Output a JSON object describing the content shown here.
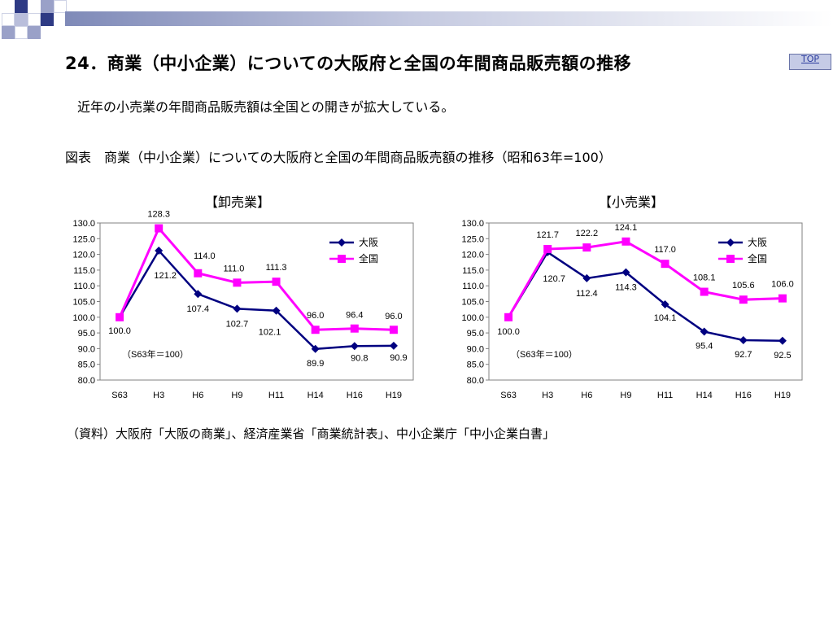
{
  "slide": {
    "title": "24．商業（中小企業）についての大阪府と全国の年間商品販売額の推移",
    "top_link": "TOP",
    "subtitle": "近年の小売業の年間商品販売額は全国との開きが拡大している。",
    "figure_title": "図表　商業（中小企業）についての大阪府と全国の年間商品販売額の推移（昭和63年=100）",
    "source": "（資料）大阪府「大阪の商業」、経済産業省「商業統計表」、中小企業庁「中小企業白書」"
  },
  "chart_data": [
    {
      "type": "line",
      "title": "【卸売業】",
      "categories": [
        "S63",
        "H3",
        "H6",
        "H9",
        "H11",
        "H14",
        "H16",
        "H19"
      ],
      "ylim": [
        80,
        130
      ],
      "yticks": [
        "80.0",
        "85.0",
        "90.0",
        "95.0",
        "100.0",
        "105.0",
        "110.0",
        "115.0",
        "120.0",
        "125.0",
        "130.0"
      ],
      "note": "（S63年＝100）",
      "legend_position": "top-right",
      "series": [
        {
          "name": "大阪",
          "color": "#000080",
          "marker": "diamond",
          "values": [
            100.0,
            121.2,
            107.4,
            102.7,
            102.1,
            89.9,
            90.8,
            90.9
          ],
          "labels": [
            "100.0",
            "121.2",
            "107.4",
            "102.7",
            "102.1",
            "89.9",
            "90.8",
            "90.9"
          ]
        },
        {
          "name": "全国",
          "color": "#ff00ff",
          "marker": "square",
          "values": [
            100.0,
            128.3,
            114.0,
            111.0,
            111.3,
            96.0,
            96.4,
            96.0
          ],
          "labels": [
            "",
            "128.3",
            "114.0",
            "111.0",
            "111.3",
            "96.0",
            "96.4",
            "96.0"
          ]
        }
      ]
    },
    {
      "type": "line",
      "title": "【小売業】",
      "categories": [
        "S63",
        "H3",
        "H6",
        "H9",
        "H11",
        "H14",
        "H16",
        "H19"
      ],
      "ylim": [
        80,
        130
      ],
      "yticks": [
        "80.0",
        "85.0",
        "90.0",
        "95.0",
        "100.0",
        "105.0",
        "110.0",
        "115.0",
        "120.0",
        "125.0",
        "130.0"
      ],
      "note": "（S63年＝100）",
      "legend_position": "top-right",
      "series": [
        {
          "name": "大阪",
          "color": "#000080",
          "marker": "diamond",
          "values": [
            100.0,
            120.7,
            112.4,
            114.3,
            104.1,
            95.4,
            92.7,
            92.5
          ],
          "labels": [
            "100.0",
            "120.7",
            "112.4",
            "114.3",
            "104.1",
            "95.4",
            "92.7",
            "92.5"
          ]
        },
        {
          "name": "全国",
          "color": "#ff00ff",
          "marker": "square",
          "values": [
            100.0,
            121.7,
            122.2,
            124.1,
            117.0,
            108.1,
            105.6,
            106.0
          ],
          "labels": [
            "",
            "121.7",
            "122.2",
            "124.1",
            "117.0",
            "108.1",
            "105.6",
            "106.0"
          ]
        }
      ]
    }
  ]
}
